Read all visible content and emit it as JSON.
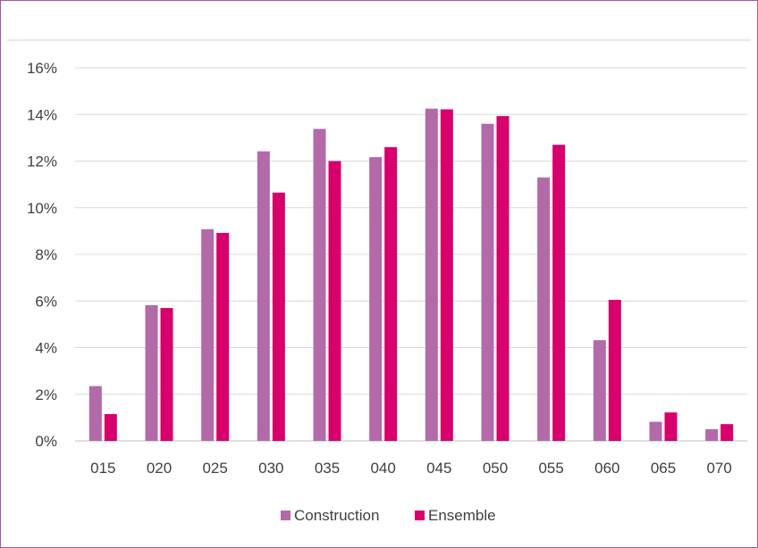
{
  "chart_data": {
    "type": "bar",
    "categories": [
      "015",
      "020",
      "025",
      "030",
      "035",
      "040",
      "045",
      "050",
      "055",
      "060",
      "065",
      "070"
    ],
    "series": [
      {
        "name": "Construction",
        "color": "#b36aa9",
        "values": [
          2.35,
          5.82,
          9.08,
          12.42,
          13.38,
          12.17,
          14.25,
          13.6,
          11.3,
          4.32,
          0.82,
          0.5
        ]
      },
      {
        "name": "Ensemble",
        "color": "#d7006c",
        "values": [
          1.15,
          5.7,
          8.92,
          10.65,
          12.0,
          12.6,
          14.22,
          13.93,
          12.7,
          6.05,
          1.22,
          0.72
        ]
      }
    ],
    "yticks": [
      "0%",
      "2%",
      "4%",
      "6%",
      "8%",
      "10%",
      "12%",
      "14%",
      "16%"
    ],
    "ylim": [
      0,
      16
    ],
    "grid": true,
    "legend_position": "bottom",
    "xlabel": "",
    "ylabel": ""
  }
}
